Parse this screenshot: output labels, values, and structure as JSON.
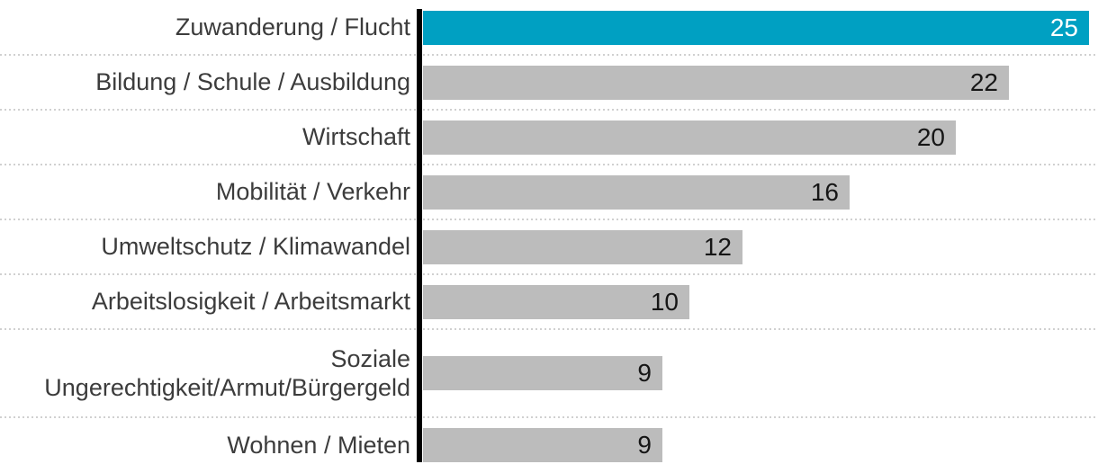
{
  "chart_data": {
    "type": "bar",
    "orientation": "horizontal",
    "title": "",
    "xlabel": "",
    "ylabel": "",
    "categories": [
      "Zuwanderung / Flucht",
      "Bildung / Schule / Ausbildung",
      "Wirtschaft",
      "Mobilität / Verkehr",
      "Umweltschutz / Klimawandel",
      "Arbeitslosigkeit / Arbeitsmarkt",
      "Soziale\nUngerechtigkeit/Armut/Bürgergeld",
      "Wohnen / Mieten"
    ],
    "values": [
      25,
      22,
      20,
      16,
      12,
      10,
      9,
      9
    ],
    "value_labels": [
      "25",
      "22",
      "20",
      "16",
      "12",
      "10",
      "9",
      "9"
    ],
    "xlim": [
      0,
      25
    ],
    "grid": false,
    "legend": "none",
    "highlight_index": 0,
    "colors": {
      "highlight": "#00a0c2",
      "default": "#bcbcbc",
      "value_on_highlight": "#ffffff",
      "value_on_default": "#161616",
      "label": "#3c3c3c",
      "axis": "#000000",
      "separator": "#d0d0d0"
    }
  }
}
